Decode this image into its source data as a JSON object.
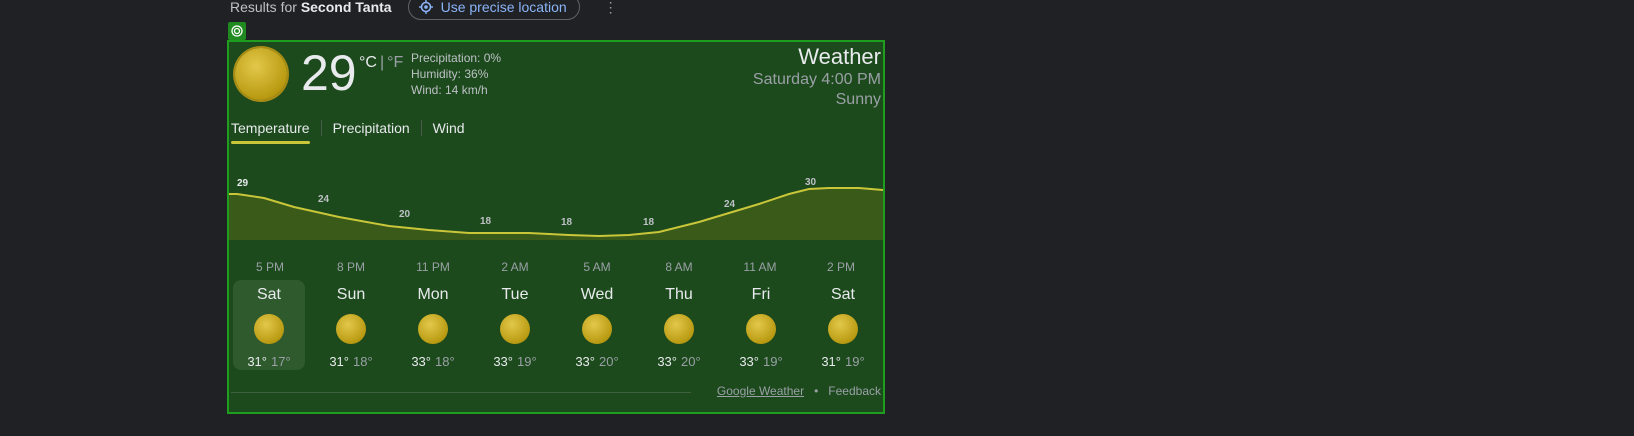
{
  "topbar": {
    "results_prefix": "Results for",
    "location": "Second Tanta",
    "precise_button": "Use precise location",
    "more_menu": "⋮"
  },
  "weather": {
    "current_temp": "29",
    "unit_c": "°C",
    "unit_sep": "|",
    "unit_f": "°F",
    "precipitation": "Precipitation: 0%",
    "humidity": "Humidity: 36%",
    "wind": "Wind: 14 km/h",
    "title": "Weather",
    "time": "Saturday 4:00 PM",
    "condition": "Sunny"
  },
  "tabs": [
    {
      "label": "Temperature"
    },
    {
      "label": "Precipitation"
    },
    {
      "label": "Wind"
    }
  ],
  "hours": [
    "5 PM",
    "8 PM",
    "11 PM",
    "2 AM",
    "5 AM",
    "8 AM",
    "11 AM",
    "2 PM"
  ],
  "hourly_temps": [
    {
      "label": "29"
    },
    {
      "label": "24"
    },
    {
      "label": "20"
    },
    {
      "label": "18"
    },
    {
      "label": "18"
    },
    {
      "label": "18"
    },
    {
      "label": "24"
    },
    {
      "label": "30"
    }
  ],
  "days": [
    {
      "name": "Sat",
      "hi": "31°",
      "lo": "17°"
    },
    {
      "name": "Sun",
      "hi": "31°",
      "lo": "18°"
    },
    {
      "name": "Mon",
      "hi": "33°",
      "lo": "18°"
    },
    {
      "name": "Tue",
      "hi": "33°",
      "lo": "19°"
    },
    {
      "name": "Wed",
      "hi": "33°",
      "lo": "20°"
    },
    {
      "name": "Thu",
      "hi": "33°",
      "lo": "20°"
    },
    {
      "name": "Fri",
      "hi": "33°",
      "lo": "19°"
    },
    {
      "name": "Sat",
      "hi": "31°",
      "lo": "19°"
    }
  ],
  "footer": {
    "source": "Google Weather",
    "dot": "•",
    "feedback": "Feedback"
  },
  "colors": {
    "card_bg": "#1c4a1c",
    "card_border": "#1f9d1f",
    "graph_line": "#c9c63a",
    "graph_fill": "#3a5a1a"
  }
}
